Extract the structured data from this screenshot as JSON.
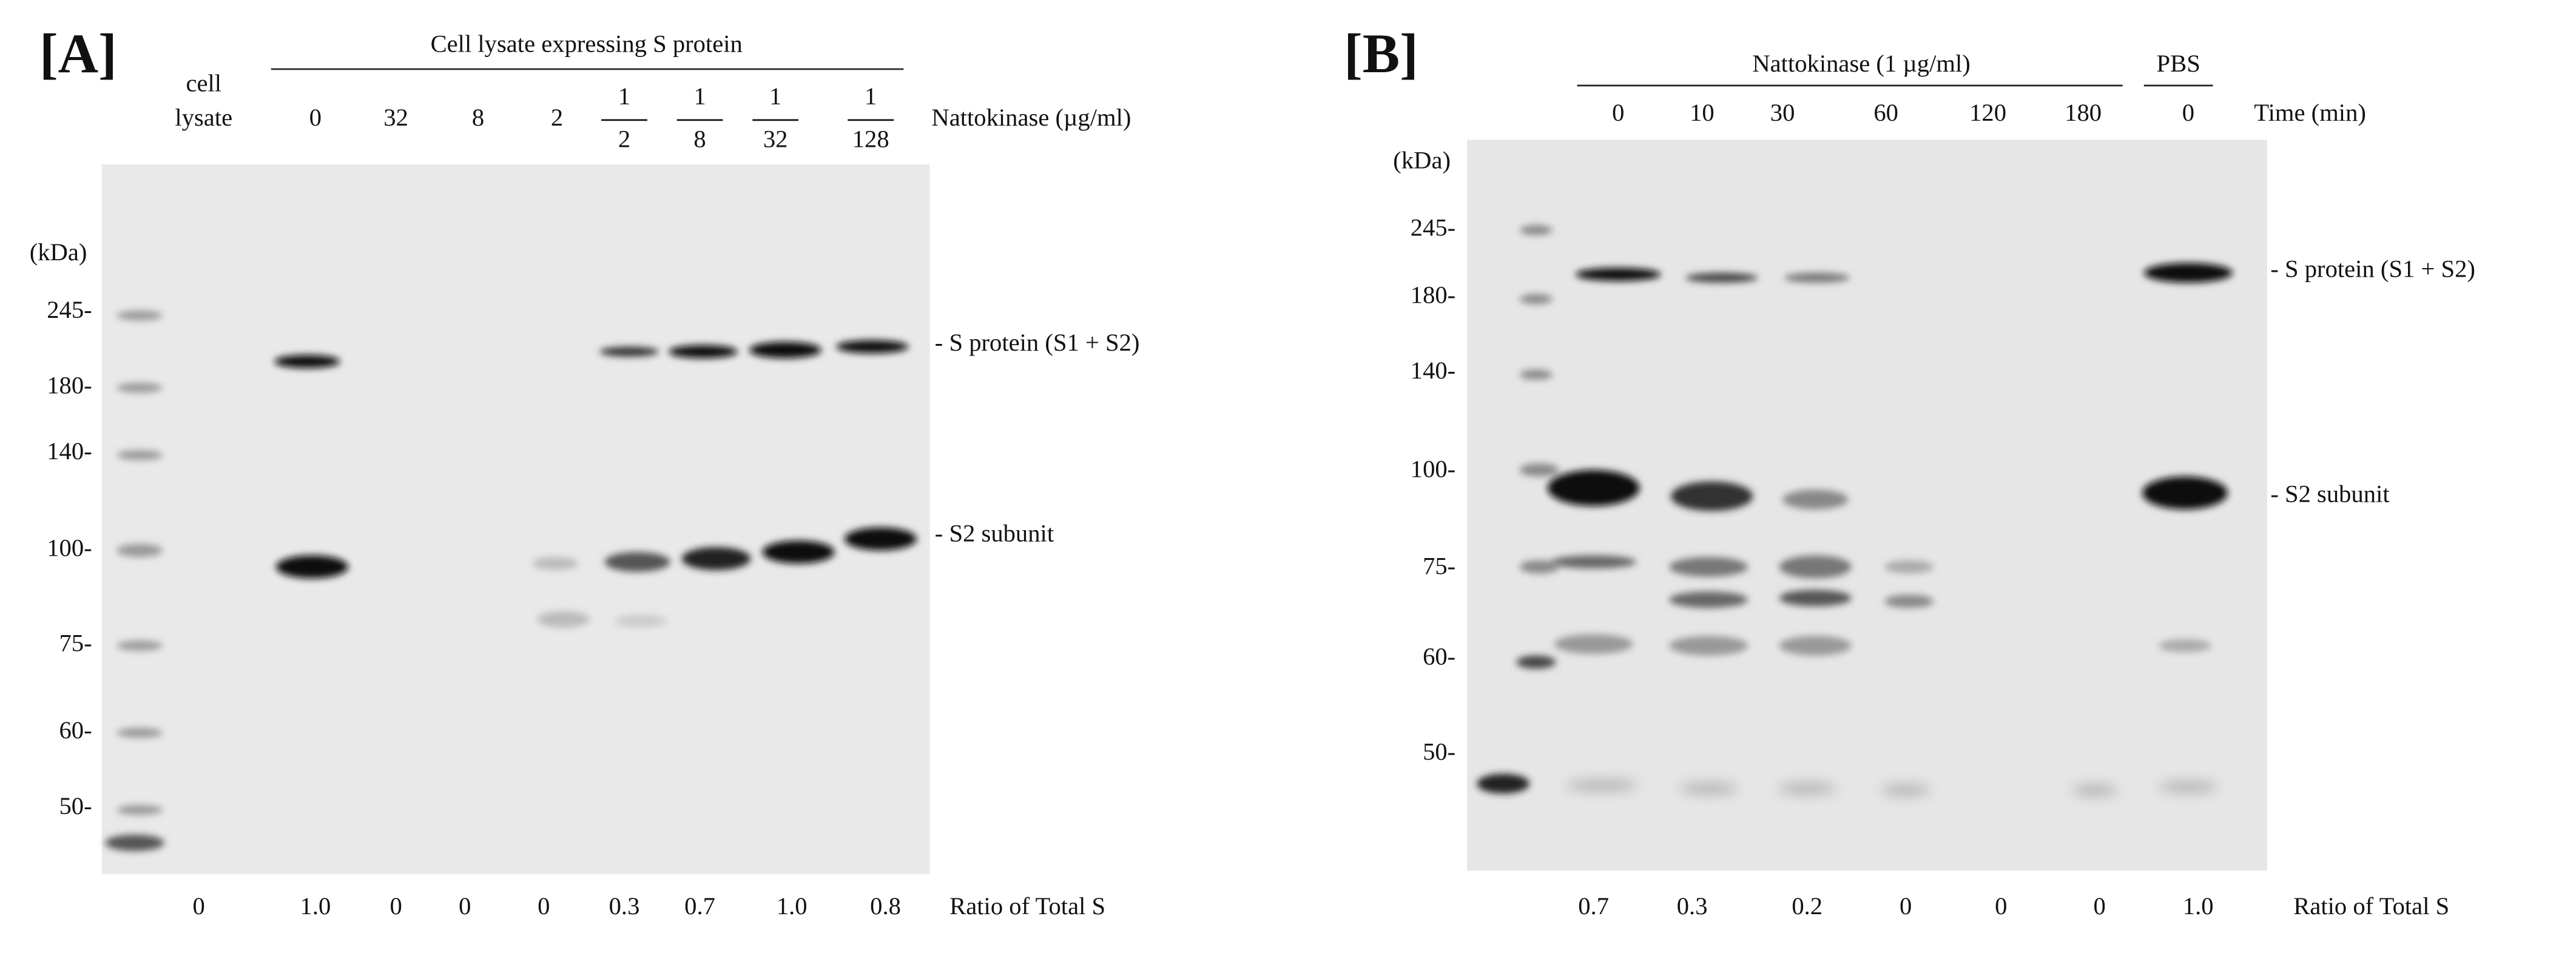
{
  "panel_a": {
    "label": "[A]",
    "header": "Cell lysate expressing S protein",
    "first_lane_label": [
      "cell",
      "lysate"
    ],
    "lane_labels": [
      "0",
      "32",
      "8",
      "2"
    ],
    "fraction_lane_labels": [
      {
        "numerator": "1",
        "denominator": "2"
      },
      {
        "numerator": "1",
        "denominator": "8"
      },
      {
        "numerator": "1",
        "denominator": "32"
      },
      {
        "numerator": "1",
        "denominator": "128"
      }
    ],
    "condition_label": "Nattokinase (µg/ml)",
    "unit_label": "(kDa)",
    "markers": [
      "245-",
      "180-",
      "140-",
      "100-",
      "75-",
      "60-",
      "50-"
    ],
    "band_labels": [
      "- S protein (S1 + S2)",
      "- S2 subunit"
    ],
    "ratios": [
      "0",
      "1.0",
      "0",
      "0",
      "0",
      "0.3",
      "0.7",
      "1.0",
      "0.8"
    ],
    "ratio_label": "Ratio of Total S"
  },
  "panel_b": {
    "label": "[B]",
    "header": "Nattokinase  (1 µg/ml)",
    "control_header": "PBS",
    "lane_labels": [
      "0",
      "10",
      "30",
      "60",
      "120",
      "180",
      "0"
    ],
    "condition_label": "Time (min)",
    "unit_label": "(kDa)",
    "markers": [
      "245-",
      "180-",
      "140-",
      "100-",
      "75-",
      "60-",
      "50-"
    ],
    "band_labels": [
      "- S protein (S1 + S2)",
      "- S2 subunit"
    ],
    "ratios": [
      "0.7",
      "0.3",
      "0.2",
      "0",
      "0",
      "0",
      "1.0"
    ],
    "ratio_label": "Ratio of Total S"
  }
}
